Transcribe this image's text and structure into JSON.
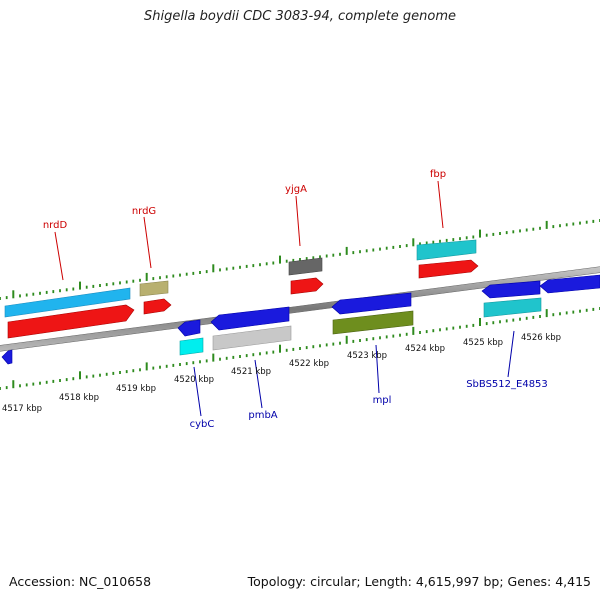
{
  "title": "Shigella boydii CDC 3083-94, complete genome",
  "footer": {
    "accession": "Accession: NC_010658",
    "summary": "Topology: circular; Length: 4,615,997 bp; Genes: 4,415"
  },
  "colors": {
    "backbone": "#777777",
    "tick": "#2e8b1e",
    "scale_label": "#111111",
    "forward_label": "#cc0000",
    "reverse_label": "#0000aa"
  },
  "scale": {
    "labels": [
      "4517 kbp",
      "4518 kbp",
      "4519 kbp",
      "4520 kbp",
      "4521 kbp",
      "4522 kbp",
      "4523 kbp",
      "4524 kbp",
      "4525 kbp",
      "4526 kbp"
    ]
  },
  "gene_labels": {
    "forward": [
      "nrdD",
      "nrdG",
      "yjgA",
      "fbp"
    ],
    "reverse": [
      "cybC",
      "pmbA",
      "mpl",
      "SbBS512_E4853"
    ]
  }
}
